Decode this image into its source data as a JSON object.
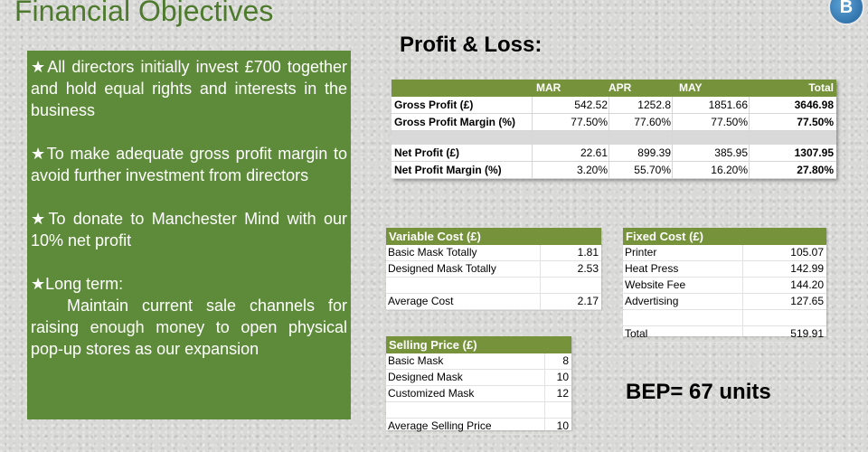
{
  "title": "Financial Objectives",
  "logo_letter": "B",
  "objectives": [
    "★All directors initially invest £700 together and hold equal rights and interests in the business",
    "★To make adequate gross profit margin to avoid further investment from directors",
    "★To donate to Manchester Mind with our 10% net profit"
  ],
  "long_term": {
    "heading": "★Long term:",
    "text": "Maintain current sale channels for raising enough money to open physical pop-up stores as our expansion"
  },
  "profit_loss": {
    "title": "Profit & Loss:",
    "columns": [
      "MAR",
      "APR",
      "MAY",
      "Total"
    ],
    "rows": [
      {
        "label": "Gross Profit (£)",
        "values": [
          "542.52",
          "1252.8",
          "1851.66",
          "3646.98"
        ]
      },
      {
        "label": "Gross Profit Margin (%)",
        "values": [
          "77.50%",
          "77.60%",
          "77.50%",
          "77.50%"
        ]
      },
      {
        "label": "Net Profit (£)",
        "values": [
          "22.61",
          "899.39",
          "385.95",
          "1307.95"
        ]
      },
      {
        "label": "Net Profit Margin (%)",
        "values": [
          "3.20%",
          "55.70%",
          "16.20%",
          "27.80%"
        ]
      }
    ]
  },
  "variable_cost": {
    "title": "Variable Cost (£)",
    "rows": [
      {
        "label": "Basic Mask Totally",
        "value": "1.81"
      },
      {
        "label": "Designed Mask Totally",
        "value": "2.53"
      },
      {
        "label": "Average Cost",
        "value": "2.17"
      }
    ]
  },
  "fixed_cost": {
    "title": "Fixed Cost (£)",
    "rows": [
      {
        "label": "Printer",
        "value": "105.07"
      },
      {
        "label": "Heat Press",
        "value": "142.99"
      },
      {
        "label": "Website Fee",
        "value": "144.20"
      },
      {
        "label": "Advertising",
        "value": "127.65"
      },
      {
        "label": "Total",
        "value": "519.91"
      }
    ]
  },
  "selling_price": {
    "title": "Selling Price (£)",
    "rows": [
      {
        "label": "Basic Mask",
        "value": "8"
      },
      {
        "label": "Designed Mask",
        "value": "10"
      },
      {
        "label": "Customized Mask",
        "value": "12"
      },
      {
        "label": "Average Selling Price",
        "value": "10"
      }
    ]
  },
  "bep": "BEP= 67 units",
  "colors": {
    "accent_green": "#5e8b3a",
    "header_green": "#76933c",
    "title_green": "#4d7a2c"
  }
}
